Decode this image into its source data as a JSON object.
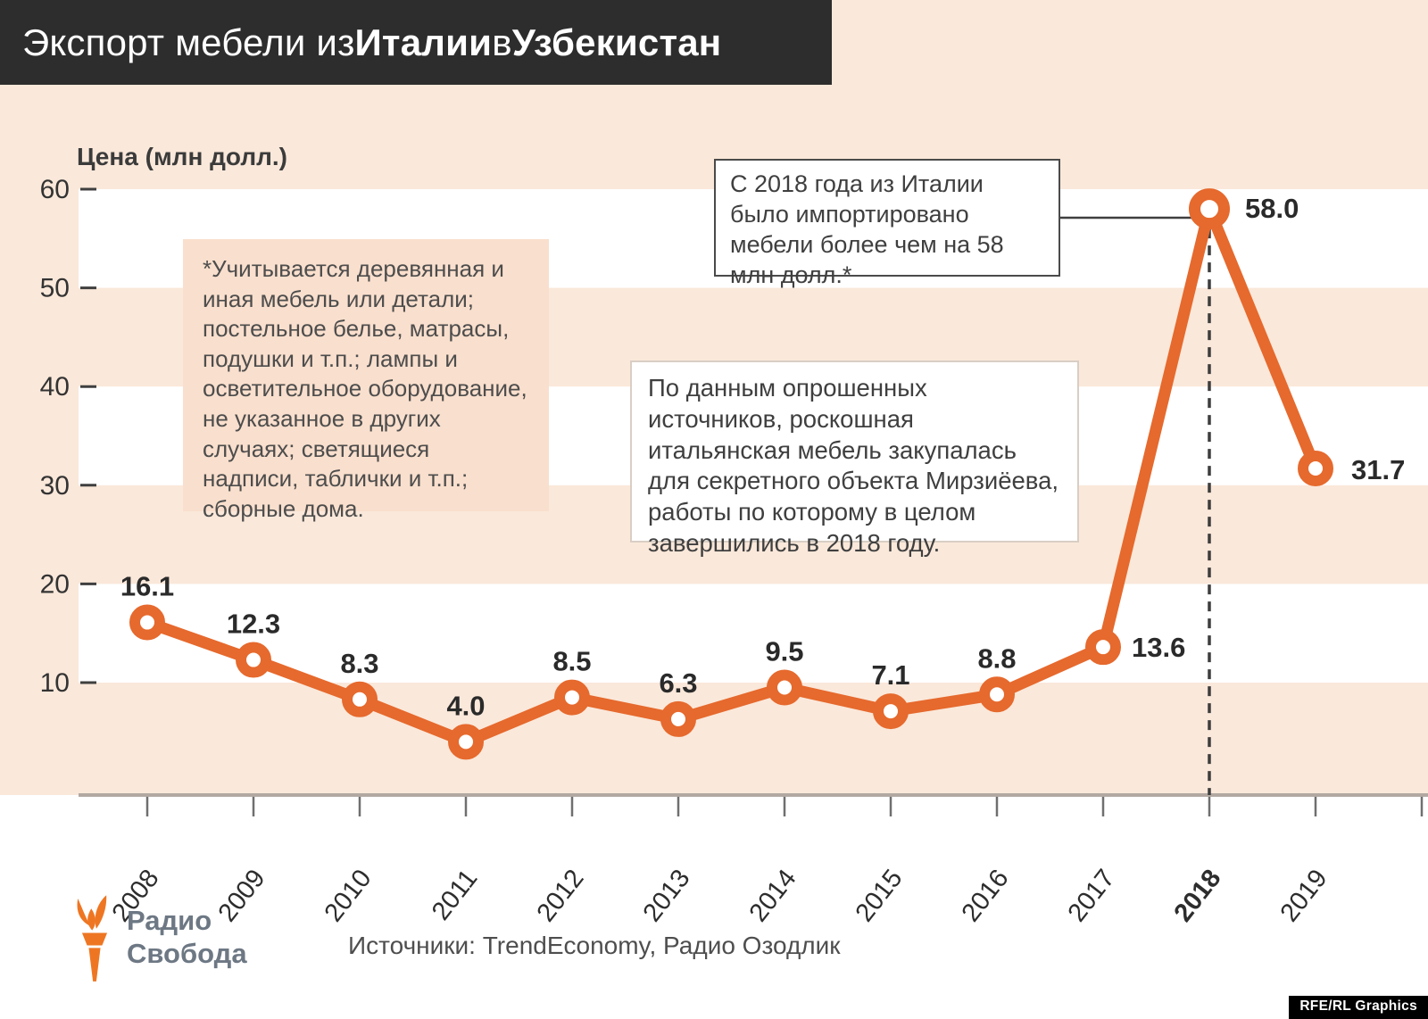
{
  "header": {
    "title_parts": {
      "t1": "Экспорт мебели из ",
      "t2": "Италии",
      "t3": " в ",
      "t4": "Узбекистан"
    }
  },
  "chart_data": {
    "type": "line",
    "title": "Экспорт мебели из Италии в Узбекистан",
    "ylabel": "Цена (млн долл.)",
    "categories": [
      2008,
      2009,
      2010,
      2011,
      2012,
      2013,
      2014,
      2015,
      2016,
      2017,
      2018,
      2019
    ],
    "values": [
      16.1,
      12.3,
      8.3,
      4.0,
      8.5,
      6.3,
      9.5,
      7.1,
      8.8,
      13.6,
      58.0,
      31.7
    ],
    "ylim": [
      0,
      60
    ],
    "yticks": [
      10,
      20,
      30,
      40,
      50,
      60
    ],
    "highlight_year": 2018,
    "line_color": "#e6692d",
    "band_color": "#fae8da",
    "white_band_color": "#ffffff",
    "grid": "alternating horizontal bands of 10 units",
    "legend": "none"
  },
  "annotations": {
    "footnote": "*Учитывается деревянная и иная мебель или детали; постельное белье, матрасы, подушки и т.п.; лампы и осветительное оборудование, не указанное в других случаях; светящиеся надписи, таблички и т.п.; сборные дома.",
    "callout_2018": "С 2018 года из Италии было импортировано мебели более чем на 58 млн долл.*",
    "sources_callout": "По данным опрошенных источников, роскошная итальянская мебель закупалась для секретного объекта Мирзиёева, работы по которому в целом завершились в 2018 году."
  },
  "footer": {
    "logo_line1": "Радио",
    "logo_line2": "Свобода",
    "sources": "Источники: TrendEconomy, Радио Озодлик",
    "credit": "RFE/RL Graphics"
  }
}
